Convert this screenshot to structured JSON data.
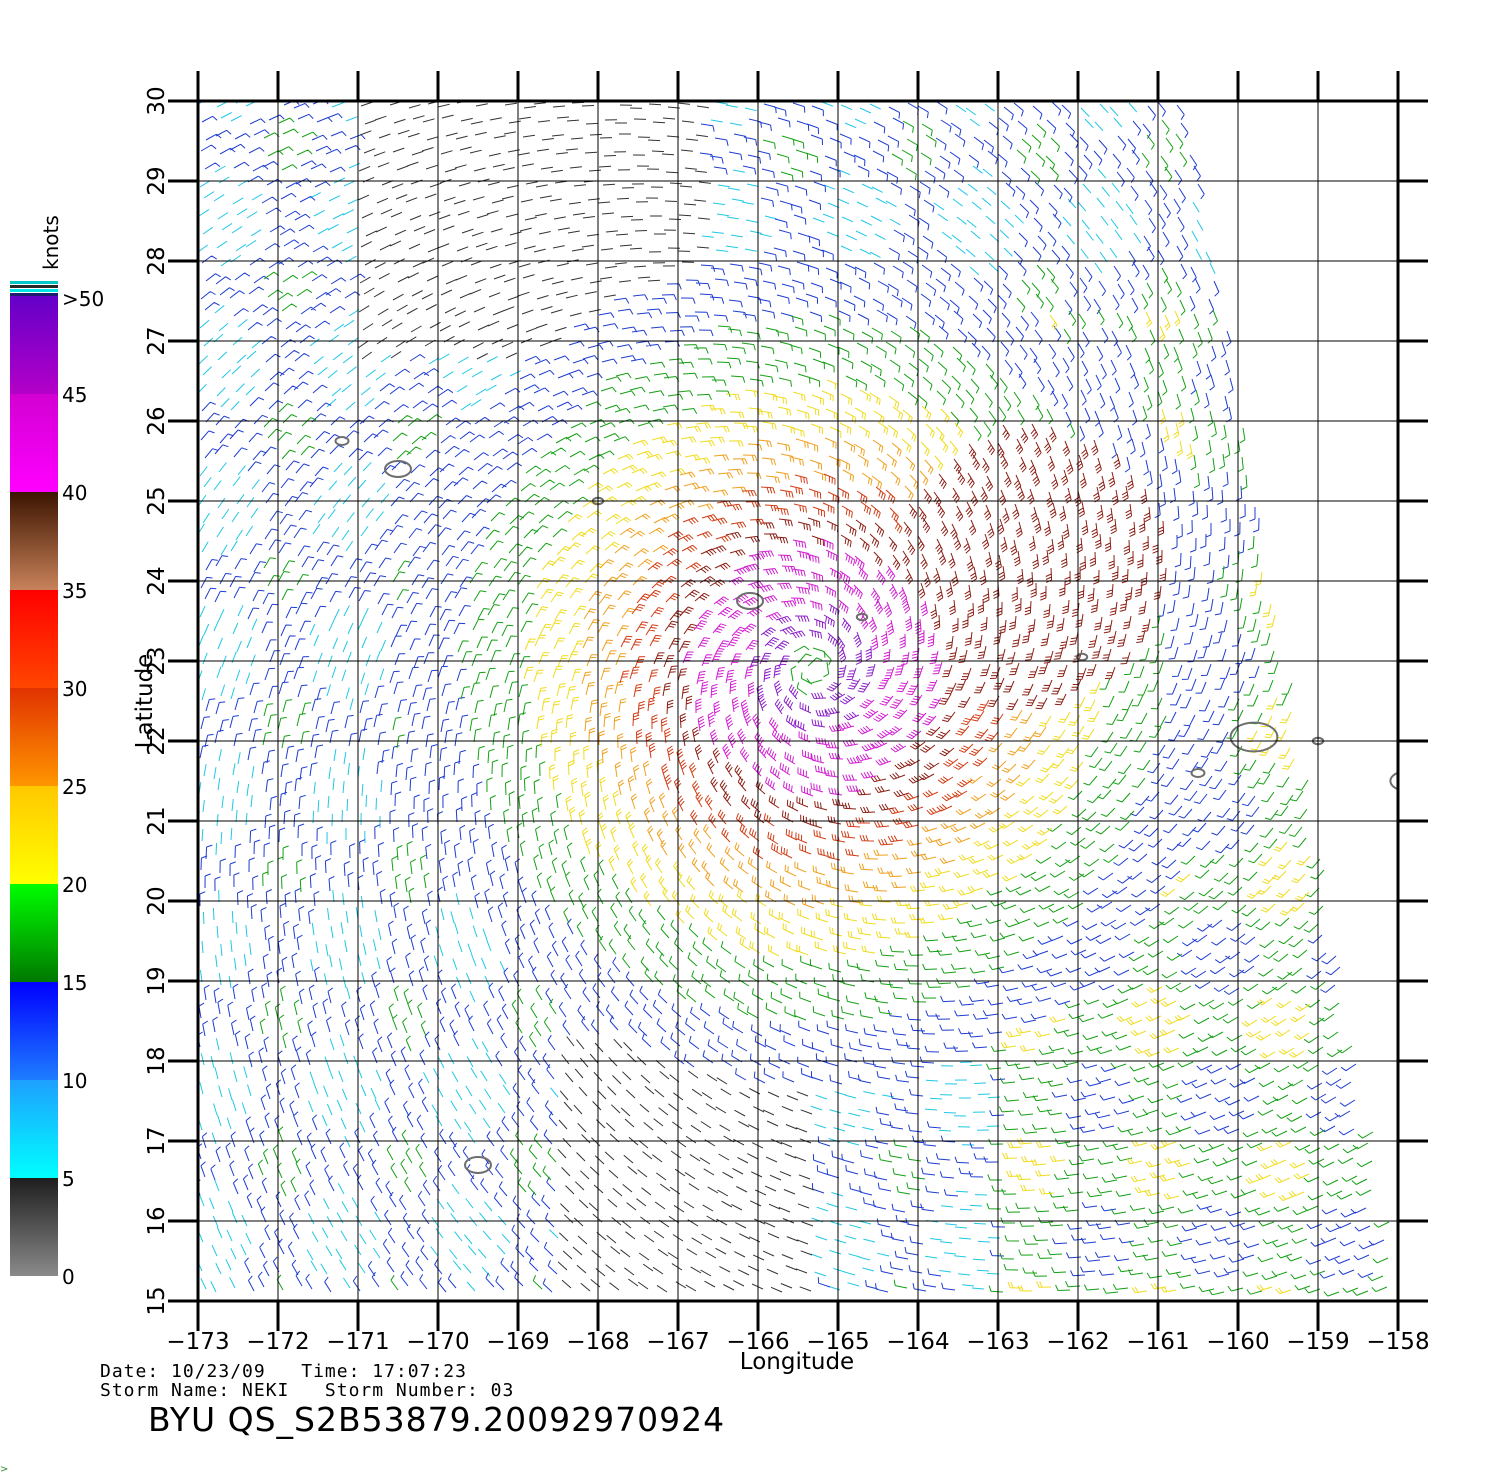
{
  "map": {
    "lon_range": [
      -173,
      -158
    ],
    "lat_range": [
      15,
      30
    ],
    "lon_ticks": [
      "-173",
      "-172",
      "-171",
      "-170",
      "-169",
      "-168",
      "-167",
      "-166",
      "-165",
      "-164",
      "-163",
      "-162",
      "-161",
      "-160",
      "-159",
      "-158"
    ],
    "lat_ticks": [
      "15",
      "16",
      "17",
      "18",
      "19",
      "20",
      "21",
      "22",
      "23",
      "24",
      "25",
      "26",
      "27",
      "28",
      "29",
      "30"
    ],
    "x_axis_title": "Longitude",
    "y_axis_title": "Latitude",
    "grid": true,
    "storm_center": {
      "lon": -165.3,
      "lat": 22.9
    },
    "outer_wind_belt": {
      "lon": -163.5,
      "lat": 24.2
    },
    "islands": [
      {
        "name": "",
        "lon": -171.2,
        "lat": 25.75
      },
      {
        "name": "",
        "lon": -170.5,
        "lat": 25.4
      },
      {
        "name": "",
        "lon": -168.0,
        "lat": 25.0
      },
      {
        "name": "",
        "lon": -166.1,
        "lat": 23.75
      },
      {
        "name": "",
        "lon": -164.7,
        "lat": 23.55
      },
      {
        "name": "",
        "lon": -161.95,
        "lat": 23.05
      },
      {
        "name": "",
        "lon": -169.5,
        "lat": 16.7
      },
      {
        "name": "",
        "lon": -160.5,
        "lat": 21.6
      },
      {
        "name": "",
        "lon": -159.8,
        "lat": 22.05
      },
      {
        "name": "",
        "lon": -159.0,
        "lat": 22.0
      },
      {
        "name": "",
        "lon": -157.9,
        "lat": 21.5
      }
    ]
  },
  "colorbar": {
    "title": "knots",
    "labels": [
      ">50",
      "45",
      "40",
      "35",
      "30",
      "25",
      "20",
      "15",
      "10",
      "5",
      "0"
    ],
    "bands": [
      {
        "from": 0,
        "to": 5,
        "colors": [
          "#8a8a8a",
          "#1e1e1e"
        ]
      },
      {
        "from": 5,
        "to": 10,
        "colors": [
          "#00ffff",
          "#1ea0ff"
        ]
      },
      {
        "from": 10,
        "to": 15,
        "colors": [
          "#1e7dff",
          "#0000ff"
        ]
      },
      {
        "from": 15,
        "to": 20,
        "colors": [
          "#007800",
          "#00ff00"
        ]
      },
      {
        "from": 20,
        "to": 25,
        "colors": [
          "#ffff00",
          "#ffc800"
        ]
      },
      {
        "from": 25,
        "to": 30,
        "colors": [
          "#ff9600",
          "#e13200"
        ]
      },
      {
        "from": 30,
        "to": 35,
        "colors": [
          "#ff4600",
          "#ff0000"
        ]
      },
      {
        "from": 35,
        "to": 40,
        "colors": [
          "#c8825a",
          "#3c1400"
        ]
      },
      {
        "from": 40,
        "to": 45,
        "colors": [
          "#ff00ff",
          "#d200d2"
        ]
      },
      {
        "from": 45,
        "to": 50,
        "colors": [
          "#b400c8",
          "#6400c8"
        ]
      }
    ]
  },
  "info": {
    "date_line": "Date: 10/23/09   Time: 17:07:23",
    "storm_line": "Storm Name: NEKI   Storm Number: 03",
    "product_id": "BYU QS_S2B53879.20092970924"
  }
}
